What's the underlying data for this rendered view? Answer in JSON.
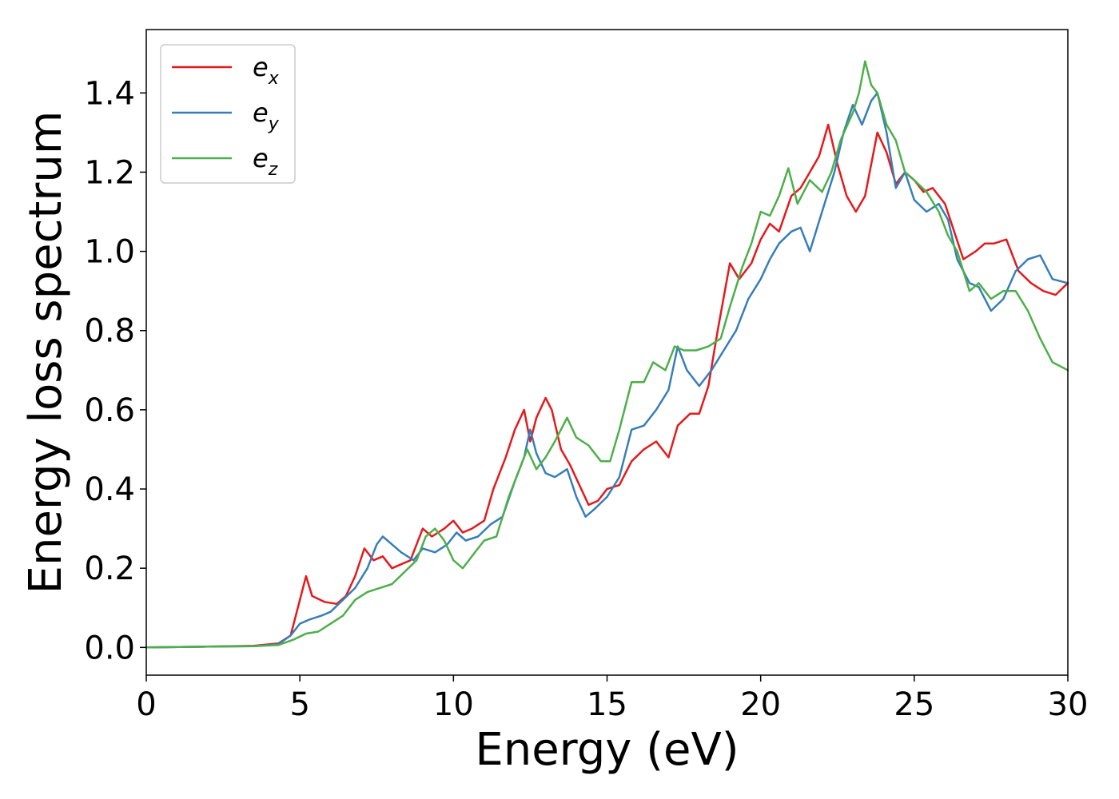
{
  "chart_data": {
    "type": "line",
    "xlabel": "Energy (eV)",
    "ylabel": "Energy loss spectrum",
    "xlim": [
      0,
      30
    ],
    "ylim": [
      -0.07,
      1.56
    ],
    "xticks": [
      0,
      5,
      10,
      15,
      20,
      25,
      30
    ],
    "xtick_labels": [
      "0",
      "5",
      "10",
      "15",
      "20",
      "25",
      "30"
    ],
    "yticks": [
      0.0,
      0.2,
      0.4,
      0.6,
      0.8,
      1.0,
      1.2,
      1.4
    ],
    "ytick_labels": [
      "0.0",
      "0.2",
      "0.4",
      "0.6",
      "0.8",
      "1.0",
      "1.2",
      "1.4"
    ],
    "grid": false,
    "legend_position": "top-left",
    "series": [
      {
        "name": "e",
        "subscript": "x",
        "color": "#e41a1c",
        "points": [
          [
            0,
            0
          ],
          [
            2,
            0.002
          ],
          [
            3.5,
            0.004
          ],
          [
            4.3,
            0.01
          ],
          [
            4.7,
            0.03
          ],
          [
            5.0,
            0.12
          ],
          [
            5.2,
            0.18
          ],
          [
            5.4,
            0.13
          ],
          [
            5.8,
            0.115
          ],
          [
            6.2,
            0.11
          ],
          [
            6.5,
            0.13
          ],
          [
            6.8,
            0.18
          ],
          [
            7.1,
            0.25
          ],
          [
            7.4,
            0.22
          ],
          [
            7.7,
            0.23
          ],
          [
            8.0,
            0.2
          ],
          [
            8.3,
            0.21
          ],
          [
            8.6,
            0.22
          ],
          [
            9.0,
            0.3
          ],
          [
            9.3,
            0.28
          ],
          [
            9.7,
            0.3
          ],
          [
            10.0,
            0.32
          ],
          [
            10.3,
            0.29
          ],
          [
            10.6,
            0.3
          ],
          [
            11.0,
            0.32
          ],
          [
            11.3,
            0.4
          ],
          [
            11.7,
            0.48
          ],
          [
            12.0,
            0.55
          ],
          [
            12.3,
            0.6
          ],
          [
            12.5,
            0.52
          ],
          [
            12.7,
            0.58
          ],
          [
            13.0,
            0.63
          ],
          [
            13.2,
            0.6
          ],
          [
            13.5,
            0.5
          ],
          [
            13.8,
            0.46
          ],
          [
            14.1,
            0.41
          ],
          [
            14.4,
            0.36
          ],
          [
            14.7,
            0.37
          ],
          [
            15.0,
            0.4
          ],
          [
            15.4,
            0.41
          ],
          [
            15.8,
            0.47
          ],
          [
            16.2,
            0.5
          ],
          [
            16.6,
            0.52
          ],
          [
            17.0,
            0.48
          ],
          [
            17.3,
            0.56
          ],
          [
            17.7,
            0.59
          ],
          [
            18.0,
            0.59
          ],
          [
            18.3,
            0.66
          ],
          [
            18.6,
            0.8
          ],
          [
            19.0,
            0.97
          ],
          [
            19.3,
            0.93
          ],
          [
            19.7,
            0.97
          ],
          [
            20.0,
            1.03
          ],
          [
            20.3,
            1.07
          ],
          [
            20.6,
            1.05
          ],
          [
            21.0,
            1.14
          ],
          [
            21.3,
            1.16
          ],
          [
            21.6,
            1.2
          ],
          [
            21.9,
            1.24
          ],
          [
            22.2,
            1.32
          ],
          [
            22.5,
            1.22
          ],
          [
            22.8,
            1.14
          ],
          [
            23.1,
            1.1
          ],
          [
            23.4,
            1.14
          ],
          [
            23.8,
            1.3
          ],
          [
            24.1,
            1.25
          ],
          [
            24.4,
            1.17
          ],
          [
            24.7,
            1.2
          ],
          [
            25.0,
            1.18
          ],
          [
            25.3,
            1.15
          ],
          [
            25.6,
            1.16
          ],
          [
            26.0,
            1.12
          ],
          [
            26.3,
            1.05
          ],
          [
            26.6,
            0.98
          ],
          [
            27.0,
            1.0
          ],
          [
            27.3,
            1.02
          ],
          [
            27.6,
            1.02
          ],
          [
            28.0,
            1.03
          ],
          [
            28.4,
            0.95
          ],
          [
            28.8,
            0.92
          ],
          [
            29.2,
            0.9
          ],
          [
            29.6,
            0.89
          ],
          [
            30.0,
            0.92
          ]
        ]
      },
      {
        "name": "e",
        "subscript": "y",
        "color": "#377eb8",
        "points": [
          [
            0,
            0
          ],
          [
            2,
            0.002
          ],
          [
            3.5,
            0.003
          ],
          [
            4.3,
            0.008
          ],
          [
            4.7,
            0.03
          ],
          [
            5.0,
            0.06
          ],
          [
            5.3,
            0.07
          ],
          [
            5.7,
            0.08
          ],
          [
            6.0,
            0.09
          ],
          [
            6.4,
            0.12
          ],
          [
            6.8,
            0.15
          ],
          [
            7.2,
            0.2
          ],
          [
            7.5,
            0.26
          ],
          [
            7.7,
            0.28
          ],
          [
            8.0,
            0.26
          ],
          [
            8.3,
            0.24
          ],
          [
            8.7,
            0.22
          ],
          [
            9.0,
            0.25
          ],
          [
            9.4,
            0.24
          ],
          [
            9.8,
            0.26
          ],
          [
            10.1,
            0.29
          ],
          [
            10.4,
            0.27
          ],
          [
            10.8,
            0.28
          ],
          [
            11.2,
            0.31
          ],
          [
            11.6,
            0.33
          ],
          [
            12.0,
            0.42
          ],
          [
            12.3,
            0.48
          ],
          [
            12.5,
            0.55
          ],
          [
            12.7,
            0.49
          ],
          [
            13.0,
            0.44
          ],
          [
            13.3,
            0.43
          ],
          [
            13.7,
            0.45
          ],
          [
            14.0,
            0.38
          ],
          [
            14.3,
            0.33
          ],
          [
            14.6,
            0.35
          ],
          [
            15.0,
            0.38
          ],
          [
            15.4,
            0.43
          ],
          [
            15.8,
            0.55
          ],
          [
            16.2,
            0.56
          ],
          [
            16.6,
            0.6
          ],
          [
            17.0,
            0.65
          ],
          [
            17.3,
            0.76
          ],
          [
            17.6,
            0.7
          ],
          [
            18.0,
            0.66
          ],
          [
            18.4,
            0.7
          ],
          [
            18.8,
            0.75
          ],
          [
            19.2,
            0.8
          ],
          [
            19.6,
            0.88
          ],
          [
            20.0,
            0.93
          ],
          [
            20.3,
            0.98
          ],
          [
            20.6,
            1.02
          ],
          [
            21.0,
            1.05
          ],
          [
            21.3,
            1.06
          ],
          [
            21.6,
            1.0
          ],
          [
            22.0,
            1.1
          ],
          [
            22.4,
            1.2
          ],
          [
            22.7,
            1.3
          ],
          [
            23.0,
            1.37
          ],
          [
            23.3,
            1.32
          ],
          [
            23.6,
            1.38
          ],
          [
            23.8,
            1.4
          ],
          [
            24.1,
            1.3
          ],
          [
            24.4,
            1.16
          ],
          [
            24.7,
            1.2
          ],
          [
            25.0,
            1.13
          ],
          [
            25.4,
            1.1
          ],
          [
            25.8,
            1.12
          ],
          [
            26.1,
            1.08
          ],
          [
            26.4,
            0.98
          ],
          [
            26.8,
            0.92
          ],
          [
            27.1,
            0.91
          ],
          [
            27.5,
            0.85
          ],
          [
            27.9,
            0.88
          ],
          [
            28.3,
            0.95
          ],
          [
            28.7,
            0.98
          ],
          [
            29.1,
            0.99
          ],
          [
            29.5,
            0.93
          ],
          [
            30.0,
            0.92
          ]
        ]
      },
      {
        "name": "e",
        "subscript": "z",
        "color": "#4daf4a",
        "points": [
          [
            0,
            0
          ],
          [
            2,
            0.002
          ],
          [
            3.5,
            0.003
          ],
          [
            4.3,
            0.006
          ],
          [
            4.8,
            0.02
          ],
          [
            5.2,
            0.035
          ],
          [
            5.6,
            0.04
          ],
          [
            6.0,
            0.06
          ],
          [
            6.4,
            0.08
          ],
          [
            6.8,
            0.12
          ],
          [
            7.2,
            0.14
          ],
          [
            7.6,
            0.15
          ],
          [
            8.0,
            0.16
          ],
          [
            8.4,
            0.19
          ],
          [
            8.8,
            0.22
          ],
          [
            9.1,
            0.28
          ],
          [
            9.4,
            0.3
          ],
          [
            9.7,
            0.27
          ],
          [
            10.0,
            0.22
          ],
          [
            10.3,
            0.2
          ],
          [
            10.7,
            0.24
          ],
          [
            11.0,
            0.27
          ],
          [
            11.4,
            0.28
          ],
          [
            11.8,
            0.38
          ],
          [
            12.1,
            0.44
          ],
          [
            12.4,
            0.5
          ],
          [
            12.7,
            0.45
          ],
          [
            13.0,
            0.48
          ],
          [
            13.3,
            0.52
          ],
          [
            13.7,
            0.58
          ],
          [
            14.0,
            0.53
          ],
          [
            14.4,
            0.51
          ],
          [
            14.8,
            0.47
          ],
          [
            15.1,
            0.47
          ],
          [
            15.4,
            0.55
          ],
          [
            15.8,
            0.67
          ],
          [
            16.2,
            0.67
          ],
          [
            16.5,
            0.72
          ],
          [
            16.9,
            0.7
          ],
          [
            17.2,
            0.76
          ],
          [
            17.5,
            0.75
          ],
          [
            17.9,
            0.75
          ],
          [
            18.3,
            0.76
          ],
          [
            18.7,
            0.78
          ],
          [
            19.0,
            0.86
          ],
          [
            19.4,
            0.96
          ],
          [
            19.7,
            1.02
          ],
          [
            20.0,
            1.1
          ],
          [
            20.3,
            1.09
          ],
          [
            20.6,
            1.14
          ],
          [
            20.9,
            1.21
          ],
          [
            21.2,
            1.12
          ],
          [
            21.6,
            1.18
          ],
          [
            22.0,
            1.15
          ],
          [
            22.3,
            1.2
          ],
          [
            22.6,
            1.28
          ],
          [
            23.0,
            1.35
          ],
          [
            23.2,
            1.4
          ],
          [
            23.4,
            1.48
          ],
          [
            23.6,
            1.42
          ],
          [
            23.8,
            1.4
          ],
          [
            24.1,
            1.32
          ],
          [
            24.4,
            1.28
          ],
          [
            24.7,
            1.2
          ],
          [
            25.0,
            1.18
          ],
          [
            25.4,
            1.15
          ],
          [
            25.8,
            1.1
          ],
          [
            26.1,
            1.04
          ],
          [
            26.4,
            1.0
          ],
          [
            26.8,
            0.9
          ],
          [
            27.1,
            0.92
          ],
          [
            27.5,
            0.88
          ],
          [
            27.9,
            0.9
          ],
          [
            28.3,
            0.9
          ],
          [
            28.7,
            0.85
          ],
          [
            29.1,
            0.78
          ],
          [
            29.5,
            0.72
          ],
          [
            30.0,
            0.7
          ]
        ]
      }
    ]
  }
}
